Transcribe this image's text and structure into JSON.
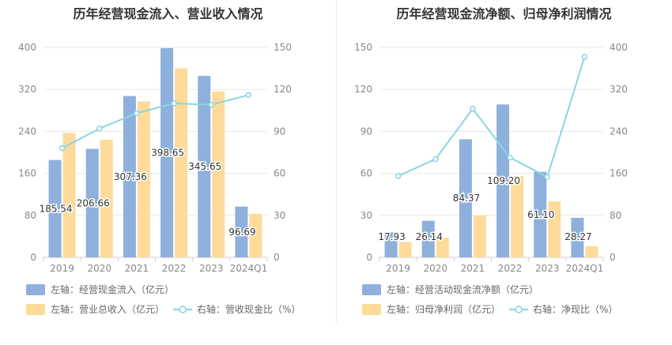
{
  "colors": {
    "bar1": "#8eb0dd",
    "bar2": "#fedb9b",
    "line": "#88d6df",
    "axis": "#888888",
    "grid": "#e8e8e8",
    "title": "#333333"
  },
  "chart_data": [
    {
      "type": "bar",
      "title": "历年经营现金流入、营业收入情况",
      "categories": [
        "2019",
        "2020",
        "2021",
        "2022",
        "2023",
        "2024Q1"
      ],
      "ylim_left": [
        0,
        400
      ],
      "yticks_left": [
        "0",
        "80",
        "160",
        "240",
        "320",
        "400"
      ],
      "ylim_right": [
        0,
        150
      ],
      "yticks_right": [
        "0",
        "30",
        "60",
        "90",
        "120",
        "150"
      ],
      "series": [
        {
          "name": "左轴：经营现金流入（亿元）",
          "axis": "left",
          "kind": "bar",
          "values": [
            185.54,
            206.66,
            307.36,
            398.65,
            345.65,
            96.69
          ],
          "labels": [
            "185.54",
            "206.66",
            "307.36",
            "398.65",
            "345.65",
            "96.69"
          ]
        },
        {
          "name": "左轴：营业总收入（亿元）",
          "axis": "left",
          "kind": "bar",
          "values": [
            237,
            224,
            297,
            360,
            316,
            83
          ]
        },
        {
          "name": "右轴：营收现金比（%）",
          "axis": "right",
          "kind": "line",
          "values": [
            78,
            92,
            103,
            110,
            109,
            116
          ]
        }
      ],
      "legend_position": "bottom"
    },
    {
      "type": "bar",
      "title": "历年经营现金流净额、归母净利润情况",
      "categories": [
        "2019",
        "2020",
        "2021",
        "2022",
        "2023",
        "2024Q1"
      ],
      "ylim_left": [
        0,
        150
      ],
      "yticks_left": [
        "0",
        "30",
        "60",
        "90",
        "120",
        "150"
      ],
      "ylim_right": [
        0,
        400
      ],
      "yticks_right": [
        "0",
        "80",
        "160",
        "240",
        "320",
        "400"
      ],
      "series": [
        {
          "name": "左轴：经营活动现金流净额（亿元）",
          "axis": "left",
          "kind": "bar",
          "values": [
            17.93,
            26.14,
            84.37,
            109.2,
            61.1,
            28.27
          ],
          "labels": [
            "17.93",
            "26.14",
            "84.37",
            "109.20",
            "61.10",
            "28.27"
          ]
        },
        {
          "name": "左轴：归母净利润（亿元）",
          "axis": "left",
          "kind": "bar",
          "values": [
            11,
            14,
            30,
            58,
            40,
            8
          ]
        },
        {
          "name": "右轴：净现比（%）",
          "axis": "right",
          "kind": "line",
          "values": [
            155,
            187,
            283,
            190,
            153,
            382
          ]
        }
      ],
      "legend_position": "bottom"
    }
  ]
}
